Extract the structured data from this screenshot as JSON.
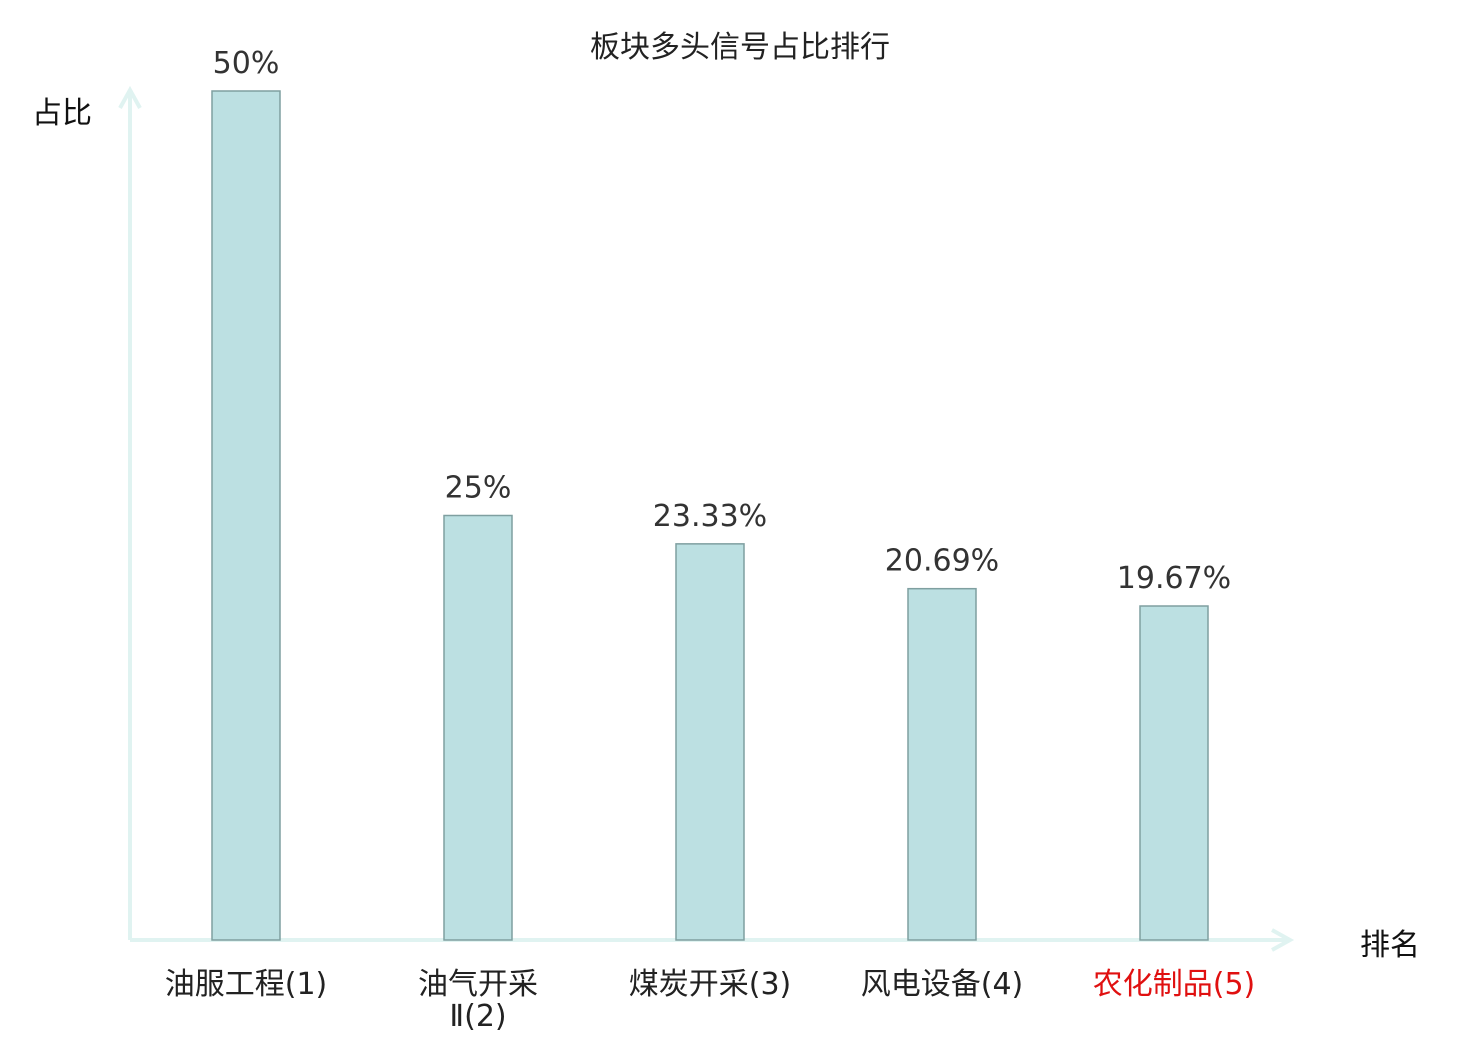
{
  "chart_data": {
    "type": "bar",
    "title": "板块多头信号占比排行",
    "ylabel": "占比",
    "xlabel": "排名",
    "categories": [
      "油服工程(1)",
      "油气开采Ⅱ(2)",
      "煤炭开采(3)",
      "风电设备(4)",
      "农化制品(5)"
    ],
    "category_lines": [
      [
        "油服工程(1)"
      ],
      [
        "油气开采",
        "Ⅱ(2)"
      ],
      [
        "煤炭开采(3)"
      ],
      [
        "风电设备(4)"
      ],
      [
        "农化制品(5)"
      ]
    ],
    "values": [
      50,
      25,
      23.33,
      20.69,
      19.67
    ],
    "value_labels": [
      "50%",
      "25%",
      "23.33%",
      "20.69%",
      "19.67%"
    ],
    "highlight_index": 4,
    "ylim": [
      0,
      50
    ],
    "grid": false,
    "colors": {
      "bar_fill": "#bce0e2",
      "bar_stroke": "#7f9fa0",
      "axis": "#e0f3f1",
      "highlight_label": "#e01010",
      "text": "#222222"
    }
  }
}
